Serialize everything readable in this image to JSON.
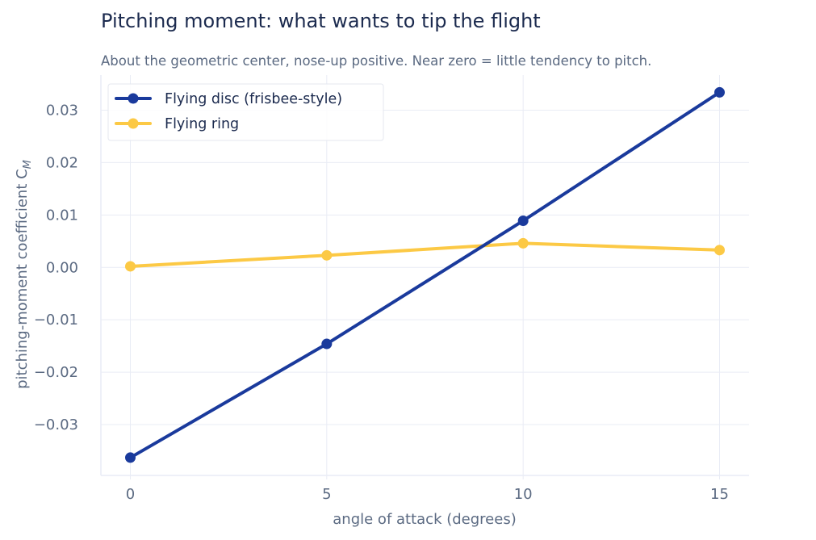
{
  "chart_data": {
    "type": "line",
    "title": "Pitching moment: what wants to tip the flight",
    "subtitle": "About the geometric center, nose-up positive. Near zero = little tendency to pitch.",
    "xlabel": "angle of attack  (degrees)",
    "ylabel": "pitching-moment coefficient  C",
    "ylabel_subscript": "M",
    "x": [
      0,
      5,
      10,
      15
    ],
    "xlim": [
      -0.75,
      15.75
    ],
    "ylim": [
      -0.0397,
      0.0367
    ],
    "x_ticks": [
      0,
      5,
      10,
      15
    ],
    "x_tick_labels": [
      "0",
      "5",
      "10",
      "15"
    ],
    "y_ticks": [
      -0.03,
      -0.02,
      -0.01,
      0.0,
      0.01,
      0.02,
      0.03
    ],
    "y_tick_labels": [
      "−0.03",
      "−0.02",
      "−0.01",
      "0.00",
      "0.01",
      "0.02",
      "0.03"
    ],
    "grid": true,
    "legend_position": "top-left",
    "series": [
      {
        "name": "Flying disc (frisbee-style)",
        "color": "#1a3a9c",
        "values": [
          -0.0363,
          -0.0146,
          0.0089,
          0.0334
        ]
      },
      {
        "name": "Flying ring",
        "color": "#fcc945",
        "values": [
          0.0002,
          0.0023,
          0.0046,
          0.0033
        ]
      }
    ]
  },
  "colors": {
    "title": "#1b2a4e",
    "subtitle": "#5b6a82",
    "tick_text": "#5b6a82",
    "grid": "#e9ecf5",
    "legend_text": "#1b2a4e",
    "legend_border": "#e4e7ef"
  }
}
